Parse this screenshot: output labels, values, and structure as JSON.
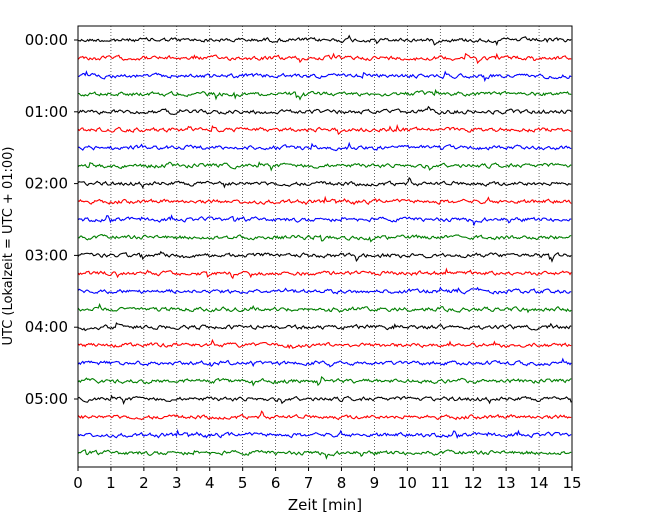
{
  "chart_data": {
    "type": "line",
    "title": "",
    "xlabel": "Zeit  [min]",
    "ylabel": "UTC (Lokalzeit = UTC + 01:00)",
    "xlim": [
      0,
      15
    ],
    "x_ticks": [
      "0",
      "1",
      "2",
      "3",
      "4",
      "5",
      "6",
      "7",
      "8",
      "9",
      "10",
      "11",
      "12",
      "13",
      "14",
      "15"
    ],
    "y_tick_labels": [
      "00:00",
      "01:00",
      "02:00",
      "03:00",
      "04:00",
      "05:00"
    ],
    "grid": "vertical dotted lines at each minute",
    "legend": "none",
    "trace_start_times_utc": [
      "00:00",
      "00:15",
      "00:30",
      "00:45",
      "01:00",
      "01:15",
      "01:30",
      "01:45",
      "02:00",
      "02:15",
      "02:30",
      "02:45",
      "03:00",
      "03:15",
      "03:30",
      "03:45",
      "04:00",
      "04:15",
      "04:30",
      "04:45",
      "05:00",
      "05:15",
      "05:30",
      "05:45"
    ],
    "trace_colors_cycle": [
      "#000000",
      "#ff0000",
      "#0000ff",
      "#007f00"
    ]
  }
}
